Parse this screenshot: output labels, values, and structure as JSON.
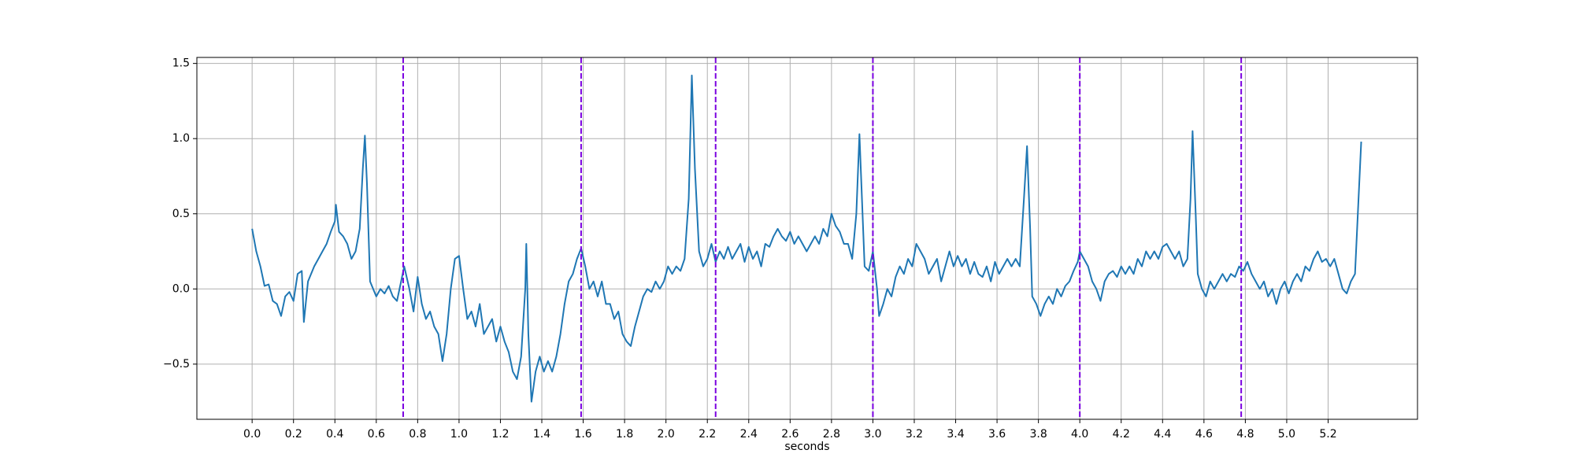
{
  "chart_data": {
    "type": "line",
    "xlabel": "seconds",
    "color": "#1f77b4",
    "grid": true,
    "xlim": [
      -0.267,
      5.632
    ],
    "ylim": [
      -0.867,
      1.54
    ],
    "xticks": [
      {
        "value": 0,
        "label": "0.0"
      },
      0.2,
      0.4,
      0.6,
      0.8,
      {
        "value": 1,
        "label": "1.0"
      },
      1.2,
      1.4,
      1.6,
      1.8,
      {
        "value": 2,
        "label": "2.0"
      },
      2.2,
      2.4,
      2.6,
      2.8,
      {
        "value": 3,
        "label": "3.0"
      },
      3.2,
      3.4,
      3.6,
      3.8,
      {
        "value": 4,
        "label": "4.0"
      },
      4.2,
      4.4,
      4.6,
      4.8,
      {
        "value": 5,
        "label": "5.0"
      },
      5.2
    ],
    "yticks": [
      {
        "value": -0.5,
        "label": "−0.5"
      },
      {
        "value": 0,
        "label": "0.0"
      },
      0.5,
      {
        "value": 1,
        "label": "1.0"
      },
      1.5
    ],
    "vlines": {
      "x": [
        0.73,
        1.59,
        2.24,
        3.0,
        4.0,
        4.78
      ],
      "color": "#7b00e0",
      "style": "dashed"
    },
    "x": [
      0,
      0.02,
      0.04,
      0.06,
      0.08,
      0.1,
      0.12,
      0.14,
      0.16,
      0.18,
      0.2,
      0.22,
      0.24,
      0.25,
      0.27,
      0.3,
      0.32,
      0.34,
      0.36,
      0.38,
      0.4,
      0.405,
      0.42,
      0.44,
      0.46,
      0.48,
      0.5,
      0.52,
      0.535,
      0.545,
      0.555,
      0.57,
      0.6,
      0.62,
      0.64,
      0.66,
      0.68,
      0.7,
      0.72,
      0.735,
      0.76,
      0.78,
      0.8,
      0.82,
      0.84,
      0.86,
      0.88,
      0.9,
      0.92,
      0.94,
      0.96,
      0.98,
      1.0,
      1.02,
      1.04,
      1.06,
      1.08,
      1.1,
      1.12,
      1.14,
      1.16,
      1.18,
      1.2,
      1.22,
      1.24,
      1.26,
      1.28,
      1.3,
      1.32,
      1.325,
      1.335,
      1.35,
      1.37,
      1.39,
      1.41,
      1.43,
      1.45,
      1.47,
      1.49,
      1.51,
      1.53,
      1.55,
      1.57,
      1.59,
      1.61,
      1.63,
      1.65,
      1.67,
      1.69,
      1.71,
      1.73,
      1.75,
      1.77,
      1.79,
      1.81,
      1.83,
      1.85,
      1.87,
      1.89,
      1.91,
      1.93,
      1.95,
      1.97,
      1.99,
      2.01,
      2.03,
      2.05,
      2.07,
      2.09,
      2.11,
      2.125,
      2.14,
      2.16,
      2.18,
      2.2,
      2.22,
      2.24,
      2.26,
      2.28,
      2.3,
      2.32,
      2.34,
      2.36,
      2.38,
      2.4,
      2.42,
      2.44,
      2.46,
      2.48,
      2.5,
      2.52,
      2.54,
      2.56,
      2.58,
      2.6,
      2.62,
      2.64,
      2.66,
      2.68,
      2.7,
      2.72,
      2.74,
      2.76,
      2.78,
      2.8,
      2.82,
      2.84,
      2.86,
      2.88,
      2.9,
      2.92,
      2.935,
      2.95,
      2.96,
      2.98,
      3.0,
      3.02,
      3.03,
      3.05,
      3.07,
      3.09,
      3.11,
      3.13,
      3.15,
      3.17,
      3.19,
      3.21,
      3.23,
      3.25,
      3.27,
      3.29,
      3.31,
      3.33,
      3.35,
      3.37,
      3.39,
      3.41,
      3.43,
      3.45,
      3.47,
      3.49,
      3.51,
      3.53,
      3.55,
      3.57,
      3.59,
      3.61,
      3.63,
      3.65,
      3.67,
      3.69,
      3.71,
      3.73,
      3.745,
      3.76,
      3.77,
      3.79,
      3.81,
      3.83,
      3.85,
      3.87,
      3.89,
      3.91,
      3.93,
      3.95,
      3.97,
      3.99,
      4.0,
      4.02,
      4.04,
      4.06,
      4.08,
      4.1,
      4.12,
      4.14,
      4.16,
      4.18,
      4.2,
      4.22,
      4.24,
      4.26,
      4.28,
      4.3,
      4.32,
      4.34,
      4.36,
      4.38,
      4.4,
      4.42,
      4.44,
      4.46,
      4.48,
      4.5,
      4.52,
      4.535,
      4.545,
      4.56,
      4.57,
      4.59,
      4.61,
      4.63,
      4.65,
      4.67,
      4.69,
      4.71,
      4.73,
      4.75,
      4.77,
      4.79,
      4.81,
      4.83,
      4.85,
      4.87,
      4.89,
      4.91,
      4.93,
      4.95,
      4.97,
      4.99,
      5.01,
      5.03,
      5.05,
      5.07,
      5.09,
      5.11,
      5.13,
      5.15,
      5.17,
      5.19,
      5.21,
      5.23,
      5.25,
      5.27,
      5.29,
      5.31,
      5.33,
      5.36
    ],
    "values": [
      0.4,
      0.25,
      0.15,
      0.02,
      0.03,
      -0.08,
      -0.1,
      -0.18,
      -0.05,
      -0.02,
      -0.08,
      0.1,
      0.12,
      -0.22,
      0.05,
      0.15,
      0.2,
      0.25,
      0.3,
      0.38,
      0.45,
      0.56,
      0.38,
      0.35,
      0.3,
      0.2,
      0.25,
      0.4,
      0.8,
      1.02,
      0.7,
      0.05,
      -0.05,
      0,
      -0.03,
      0.02,
      -0.05,
      -0.08,
      0.05,
      0.15,
      0,
      -0.15,
      0.08,
      -0.1,
      -0.2,
      -0.15,
      -0.25,
      -0.3,
      -0.48,
      -0.3,
      0,
      0.2,
      0.22,
      0,
      -0.2,
      -0.15,
      -0.25,
      -0.1,
      -0.3,
      -0.25,
      -0.2,
      -0.35,
      -0.25,
      -0.35,
      -0.42,
      -0.55,
      -0.6,
      -0.45,
      0,
      0.3,
      -0.3,
      -0.75,
      -0.55,
      -0.45,
      -0.55,
      -0.48,
      -0.55,
      -0.45,
      -0.3,
      -0.1,
      0.05,
      0.1,
      0.2,
      0.27,
      0.15,
      0,
      0.05,
      -0.05,
      0.05,
      -0.1,
      -0.1,
      -0.2,
      -0.15,
      -0.3,
      -0.35,
      -0.38,
      -0.25,
      -0.15,
      -0.05,
      0,
      -0.02,
      0.05,
      0,
      0.05,
      0.15,
      0.1,
      0.15,
      0.12,
      0.2,
      0.6,
      1.42,
      0.8,
      0.25,
      0.15,
      0.2,
      0.3,
      0.18,
      0.25,
      0.2,
      0.28,
      0.2,
      0.25,
      0.3,
      0.18,
      0.28,
      0.2,
      0.25,
      0.15,
      0.3,
      0.28,
      0.35,
      0.4,
      0.35,
      0.32,
      0.38,
      0.3,
      0.35,
      0.3,
      0.25,
      0.3,
      0.35,
      0.3,
      0.4,
      0.35,
      0.5,
      0.42,
      0.38,
      0.3,
      0.3,
      0.2,
      0.5,
      1.03,
      0.5,
      0.15,
      0.12,
      0.25,
      0,
      -0.18,
      -0.1,
      0,
      -0.05,
      0.08,
      0.15,
      0.1,
      0.2,
      0.15,
      0.3,
      0.25,
      0.2,
      0.1,
      0.15,
      0.2,
      0.05,
      0.15,
      0.25,
      0.15,
      0.22,
      0.15,
      0.2,
      0.1,
      0.18,
      0.1,
      0.08,
      0.15,
      0.05,
      0.18,
      0.1,
      0.15,
      0.2,
      0.15,
      0.2,
      0.15,
      0.6,
      0.95,
      0.4,
      -0.05,
      -0.1,
      -0.18,
      -0.1,
      -0.05,
      -0.1,
      0,
      -0.05,
      0.02,
      0.05,
      0.12,
      0.18,
      0.25,
      0.2,
      0.15,
      0.05,
      0,
      -0.08,
      0.05,
      0.1,
      0.12,
      0.08,
      0.15,
      0.1,
      0.15,
      0.1,
      0.2,
      0.15,
      0.25,
      0.2,
      0.25,
      0.2,
      0.28,
      0.3,
      0.25,
      0.2,
      0.25,
      0.15,
      0.2,
      0.6,
      1.05,
      0.5,
      0.1,
      0,
      -0.05,
      0.05,
      0,
      0.05,
      0.1,
      0.05,
      0.1,
      0.08,
      0.15,
      0.12,
      0.18,
      0.1,
      0.05,
      0,
      0.05,
      -0.05,
      0,
      -0.1,
      0,
      0.05,
      -0.03,
      0.05,
      0.1,
      0.05,
      0.15,
      0.12,
      0.2,
      0.25,
      0.18,
      0.2,
      0.15,
      0.2,
      0.1,
      0,
      -0.03,
      0.05,
      0.1,
      0.98
    ]
  }
}
